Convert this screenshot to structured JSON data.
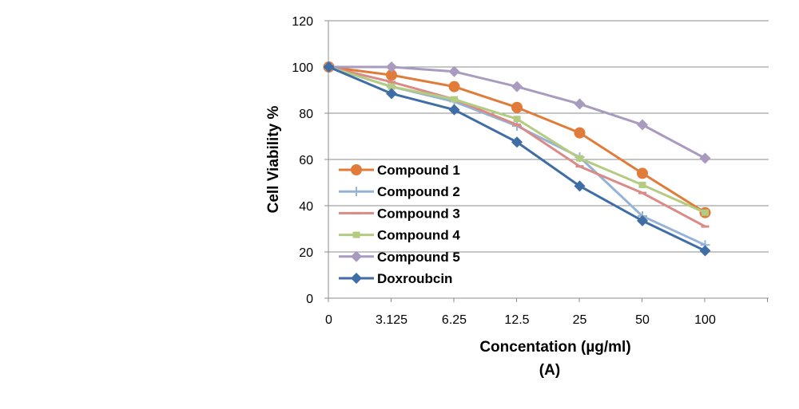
{
  "chart_data": {
    "type": "line",
    "title": "",
    "xlabel": "Concentation (µg/ml)",
    "xlabel_sub": "(A)",
    "ylabel": "Cell Viability %",
    "categories": [
      "0",
      "3.125",
      "6.25",
      "12.5",
      "25",
      "50",
      "100"
    ],
    "ylim": [
      0,
      120
    ],
    "yticks": [
      0,
      20,
      40,
      60,
      80,
      100,
      120
    ],
    "grid": "horizontal",
    "legend_position": "left",
    "series": [
      {
        "name": "Compound 1",
        "color": "#E07B39",
        "marker": "circle",
        "values": [
          100,
          96.5,
          91.5,
          82.5,
          71.5,
          54,
          37
        ]
      },
      {
        "name": "Compound 2",
        "color": "#95B3D7",
        "marker": "plus",
        "values": [
          100,
          91.5,
          85,
          74.5,
          61,
          35.5,
          23
        ]
      },
      {
        "name": "Compound 3",
        "color": "#DA8A87",
        "marker": "dash",
        "values": [
          100,
          93.5,
          86,
          75,
          57,
          45.5,
          31
        ]
      },
      {
        "name": "Compound 4",
        "color": "#B3CC82",
        "marker": "square",
        "values": [
          100,
          91.5,
          86,
          77.5,
          60.5,
          49,
          37
        ]
      },
      {
        "name": "Compound 5",
        "color": "#A99BC0",
        "marker": "diamond",
        "values": [
          100,
          100,
          98,
          91.5,
          84,
          75,
          60.5
        ]
      },
      {
        "name": "Doxroubcin",
        "color": "#3F6EA6",
        "marker": "diamond",
        "values": [
          100,
          88.5,
          81.5,
          67.5,
          48.5,
          33.5,
          20.5
        ]
      }
    ]
  }
}
